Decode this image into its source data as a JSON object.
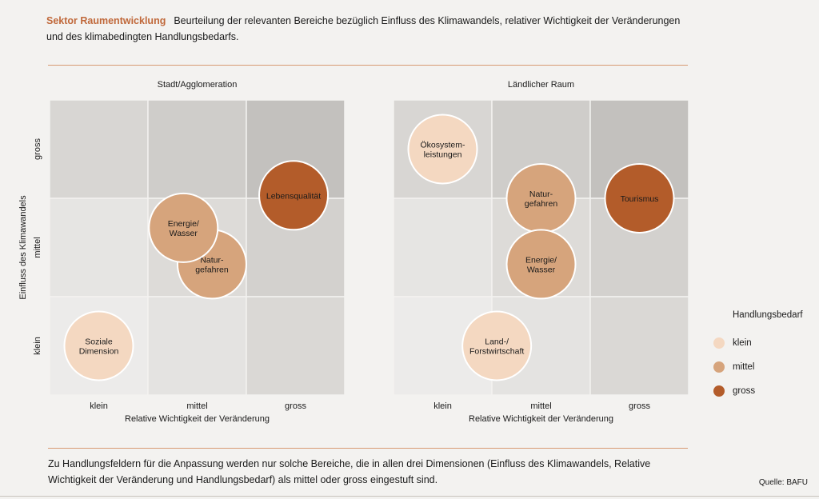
{
  "header": {
    "sector": "Sektor Raumentwicklung",
    "description": "Beurteilung der relevanten Bereiche bezüglich Einfluss des Klimawandels, relativer Wichtigkeit der Veränderungen und des klimabedingten Handlungsbedarfs."
  },
  "footer": {
    "text": "Zu Handlungsfeldern für die Anpassung werden nur solche Bereiche, die in allen drei Dimensionen (Einfluss des Klimawandels, Relative Wichtigkeit der Veränderung und Handlungsbedarf) als mittel oder gross eingestuft sind.",
    "source": "Quelle: BAFU"
  },
  "colors": {
    "klein": "#f4d8c1",
    "mittel": "#d6a47c",
    "gross": "#b35c2a"
  },
  "legend": {
    "title": "Handlungsbedarf",
    "items": [
      {
        "key": "klein",
        "label": "klein"
      },
      {
        "key": "mittel",
        "label": "mittel"
      },
      {
        "key": "gross",
        "label": "gross"
      }
    ]
  },
  "chart_data": [
    {
      "type": "scatter",
      "title": "Stadt/Agglomeration",
      "xlabel": "Relative Wichtigkeit der Veränderung",
      "ylabel": "Einfluss des Klimawandels",
      "x_categories": [
        "klein",
        "mittel",
        "gross"
      ],
      "y_categories": [
        "klein",
        "mittel",
        "gross"
      ],
      "points": [
        {
          "label": "Soziale\nDimension",
          "x": 0.5,
          "y": 0.5,
          "need": "klein"
        },
        {
          "label": "Natur-\ngefahren",
          "x": 1.65,
          "y": 1.33,
          "need": "mittel"
        },
        {
          "label": "Energie/\nWasser",
          "x": 1.36,
          "y": 1.7,
          "need": "mittel"
        },
        {
          "label": "Lebensqualität",
          "x": 2.48,
          "y": 2.03,
          "need": "gross"
        }
      ]
    },
    {
      "type": "scatter",
      "title": "Ländlicher Raum",
      "xlabel": "Relative Wichtigkeit der Veränderung",
      "ylabel": "",
      "x_categories": [
        "klein",
        "mittel",
        "gross"
      ],
      "y_categories": [
        "klein",
        "mittel",
        "gross"
      ],
      "points": [
        {
          "label": "Ökosystem-\nleistungen",
          "x": 0.5,
          "y": 2.5,
          "need": "klein"
        },
        {
          "label": "Natur-\ngefahren",
          "x": 1.5,
          "y": 2.0,
          "need": "mittel"
        },
        {
          "label": "Tourismus",
          "x": 2.5,
          "y": 2.0,
          "need": "gross"
        },
        {
          "label": "Energie/\nWasser",
          "x": 1.5,
          "y": 1.33,
          "need": "mittel"
        },
        {
          "label": "Land-/\nForstwirtschaft",
          "x": 1.05,
          "y": 0.5,
          "need": "klein"
        }
      ]
    }
  ]
}
